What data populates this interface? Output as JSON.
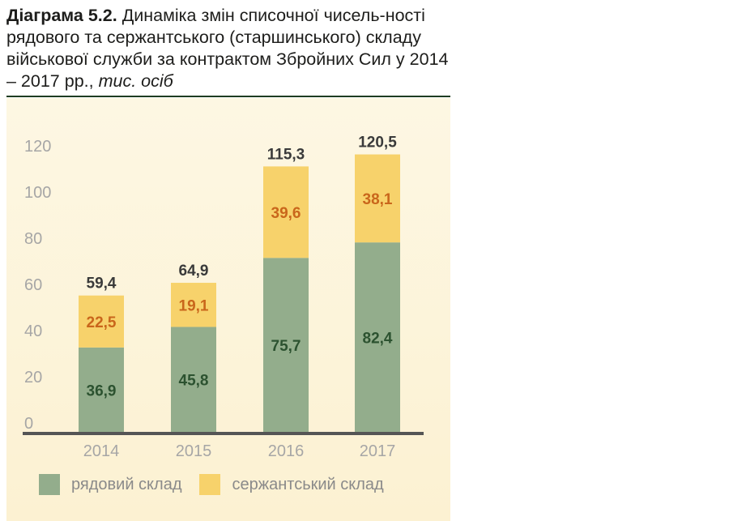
{
  "title": {
    "prefix": "Діаграма 5.2.",
    "text": "Динаміка змін списочної чисель-ності рядового та сержантського (старшинського) складу військової служби за контрактом Збройних Сил у 2014 – 2017 рр.,",
    "unit": "тис. осіб"
  },
  "colors": {
    "private": "#93ad8c",
    "sergeant": "#f7d26b",
    "private_label": "#2c5230",
    "sergeant_label": "#c9661b",
    "total_label": "#3a3a3a",
    "axis": "#555555",
    "tick": "#a6a6a6"
  },
  "chart_data": {
    "type": "bar",
    "stacked": true,
    "categories": [
      "2014",
      "2015",
      "2016",
      "2017"
    ],
    "series": [
      {
        "name": "рядовий склад",
        "values": [
          36.9,
          45.8,
          75.7,
          82.4
        ],
        "labels": [
          "36,9",
          "45,8",
          "75,7",
          "82,4"
        ]
      },
      {
        "name": "сержантський склад",
        "values": [
          22.5,
          19.1,
          39.6,
          38.1
        ],
        "labels": [
          "22,5",
          "19,1",
          "39,6",
          "38,1"
        ]
      }
    ],
    "totals": [
      59.4,
      64.9,
      115.3,
      120.5
    ],
    "total_labels": [
      "59,4",
      "64,9",
      "115,3",
      "120,5"
    ],
    "y_ticks": [
      "0",
      "20",
      "40",
      "60",
      "80",
      "100",
      "120"
    ],
    "ylim": [
      0,
      120
    ],
    "legend_position": "bottom",
    "grid": false
  }
}
